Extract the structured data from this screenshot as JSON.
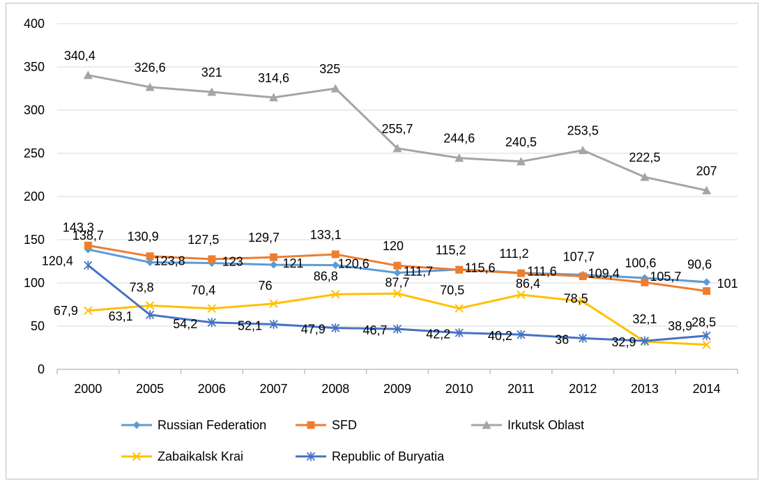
{
  "chart_data": {
    "type": "line",
    "title": "",
    "xlabel": "",
    "ylabel": "",
    "categories": [
      "2000",
      "2005",
      "2006",
      "2007",
      "2008",
      "2009",
      "2010",
      "2011",
      "2012",
      "2013",
      "2014"
    ],
    "ylim": [
      0,
      400
    ],
    "yticks": [
      "0",
      "50",
      "100",
      "150",
      "200",
      "250",
      "300",
      "350",
      "400"
    ],
    "grid": true,
    "legend_position": "bottom",
    "series": [
      {
        "name": "Russian Federation",
        "color": "#5b9bd5",
        "marker": "diamond",
        "values": [
          138.7,
          123.8,
          123,
          121,
          120.6,
          111.7,
          115.6,
          111.6,
          109.4,
          105.7,
          101
        ],
        "labels": [
          "138,7",
          "123,8",
          "123",
          "121",
          "120,6",
          "111,7",
          "115,6",
          "111,6",
          "109,4",
          "105,7",
          "101"
        ]
      },
      {
        "name": "SFD",
        "color": "#ed7d31",
        "marker": "square",
        "values": [
          143.3,
          130.9,
          127.5,
          129.7,
          133.1,
          120,
          115.2,
          111.2,
          107.7,
          100.6,
          90.6
        ],
        "labels": [
          "143,3",
          "130,9",
          "127,5",
          "129,7",
          "133,1",
          "120",
          "115,2",
          "111,2",
          "107,7",
          "100,6",
          "90,6"
        ]
      },
      {
        "name": "Irkutsk Oblast",
        "color": "#a5a5a5",
        "marker": "triangle",
        "values": [
          340.4,
          326.6,
          321,
          314.6,
          325,
          255.7,
          244.6,
          240.5,
          253.5,
          222.5,
          207
        ],
        "labels": [
          "340,4",
          "326,6",
          "321",
          "314,6",
          "325",
          "255,7",
          "244,6",
          "240,5",
          "253,5",
          "222,5",
          "207"
        ]
      },
      {
        "name": "Zabaikalsk Krai",
        "color": "#ffc000",
        "marker": "x",
        "values": [
          67.9,
          73.8,
          70.4,
          76,
          86.8,
          87.7,
          70.5,
          86.4,
          78.5,
          32.1,
          28.5
        ],
        "labels": [
          "67,9",
          "73,8",
          "70,4",
          "76",
          "86,8",
          "87,7",
          "70,5",
          "86,4",
          "78,5",
          "32,1",
          "28,5"
        ]
      },
      {
        "name": "Republic of Buryatia",
        "color": "#4472c4",
        "marker": "star",
        "values": [
          120.4,
          63.1,
          54.2,
          52.1,
          47.9,
          46.7,
          42.2,
          40.2,
          36,
          32.9,
          38.9
        ],
        "labels": [
          "120,4",
          "63,1",
          "54,2",
          "52,1",
          "47,9",
          "46,7",
          "42,2",
          "40,2",
          "36",
          "32,9",
          "38,9"
        ]
      }
    ]
  }
}
